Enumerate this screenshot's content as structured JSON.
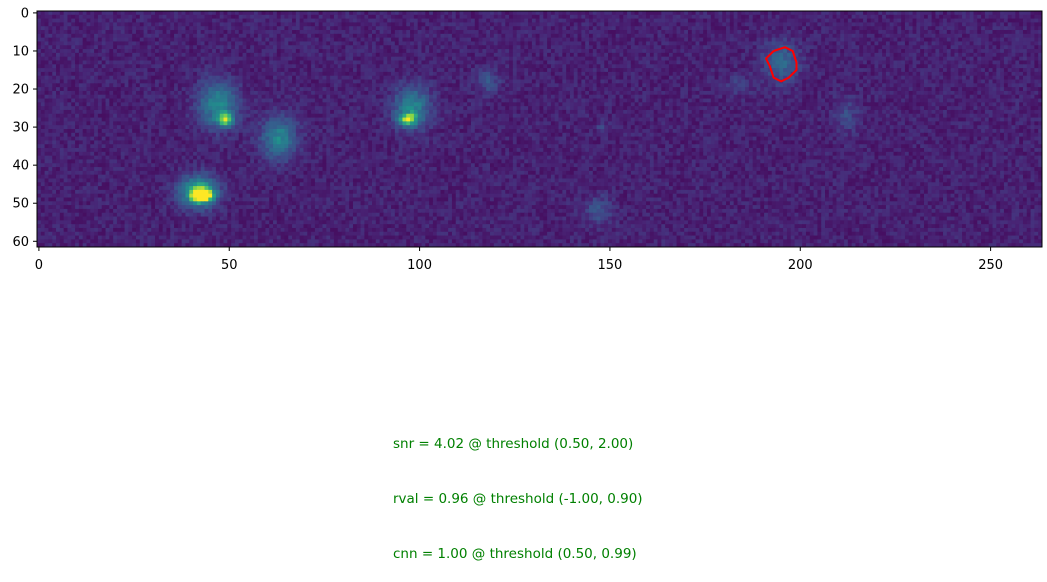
{
  "chart_data": {
    "type": "heatmap",
    "title": "",
    "xlabel": "",
    "ylabel": "",
    "xlim": [
      -0.5,
      263.5
    ],
    "ylim": [
      61.5,
      -0.5
    ],
    "x_ticks": [
      0,
      50,
      100,
      150,
      200,
      250
    ],
    "y_ticks": [
      0,
      10,
      20,
      30,
      40,
      50,
      60
    ],
    "colormap": "viridis",
    "grid": false,
    "background_level": 0.12,
    "blobs": [
      {
        "x": 47,
        "y": 24,
        "rx": 3.6,
        "ry": 4.2,
        "peak": 0.45
      },
      {
        "x": 49,
        "y": 28,
        "rx": 1.6,
        "ry": 1.4,
        "peak": 0.55
      },
      {
        "x": 63,
        "y": 33,
        "rx": 3.2,
        "ry": 3.8,
        "peak": 0.45
      },
      {
        "x": 42,
        "y": 47,
        "rx": 3.4,
        "ry": 2.8,
        "peak": 0.72
      },
      {
        "x": 43,
        "y": 48,
        "rx": 1.8,
        "ry": 1.1,
        "peak": 0.78
      },
      {
        "x": 98,
        "y": 25,
        "rx": 3.4,
        "ry": 3.9,
        "peak": 0.45
      },
      {
        "x": 97,
        "y": 28,
        "rx": 1.6,
        "ry": 1.0,
        "peak": 0.6
      },
      {
        "x": 118,
        "y": 18,
        "rx": 2.2,
        "ry": 2.4,
        "peak": 0.2
      },
      {
        "x": 147,
        "y": 52,
        "rx": 2.6,
        "ry": 2.6,
        "peak": 0.2
      },
      {
        "x": 148,
        "y": 30,
        "rx": 1.0,
        "ry": 1.0,
        "peak": 0.15
      },
      {
        "x": 195,
        "y": 13,
        "rx": 3.2,
        "ry": 3.8,
        "peak": 0.3
      },
      {
        "x": 184,
        "y": 19,
        "rx": 2.6,
        "ry": 1.8,
        "peak": 0.12
      },
      {
        "x": 212,
        "y": 27,
        "rx": 2.2,
        "ry": 3.2,
        "peak": 0.16
      }
    ],
    "contour": {
      "color": "#ff0000",
      "points": [
        [
          193,
          10
        ],
        [
          196,
          9
        ],
        [
          198,
          10
        ],
        [
          199,
          13
        ],
        [
          199,
          15
        ],
        [
          197,
          17
        ],
        [
          195,
          18
        ],
        [
          193,
          17
        ],
        [
          192,
          14
        ],
        [
          191,
          12
        ],
        [
          192,
          11
        ],
        [
          193,
          10
        ]
      ]
    }
  },
  "metrics": {
    "snr": "snr = 4.02 @ threshold (0.50, 2.00)",
    "rval": "rval = 0.96 @ threshold (-1.00, 0.90)",
    "cnn": "cnn = 1.00 @ threshold (0.50, 0.99)"
  },
  "colors": {
    "metric_text": "#008000",
    "contour": "#ff0000"
  }
}
